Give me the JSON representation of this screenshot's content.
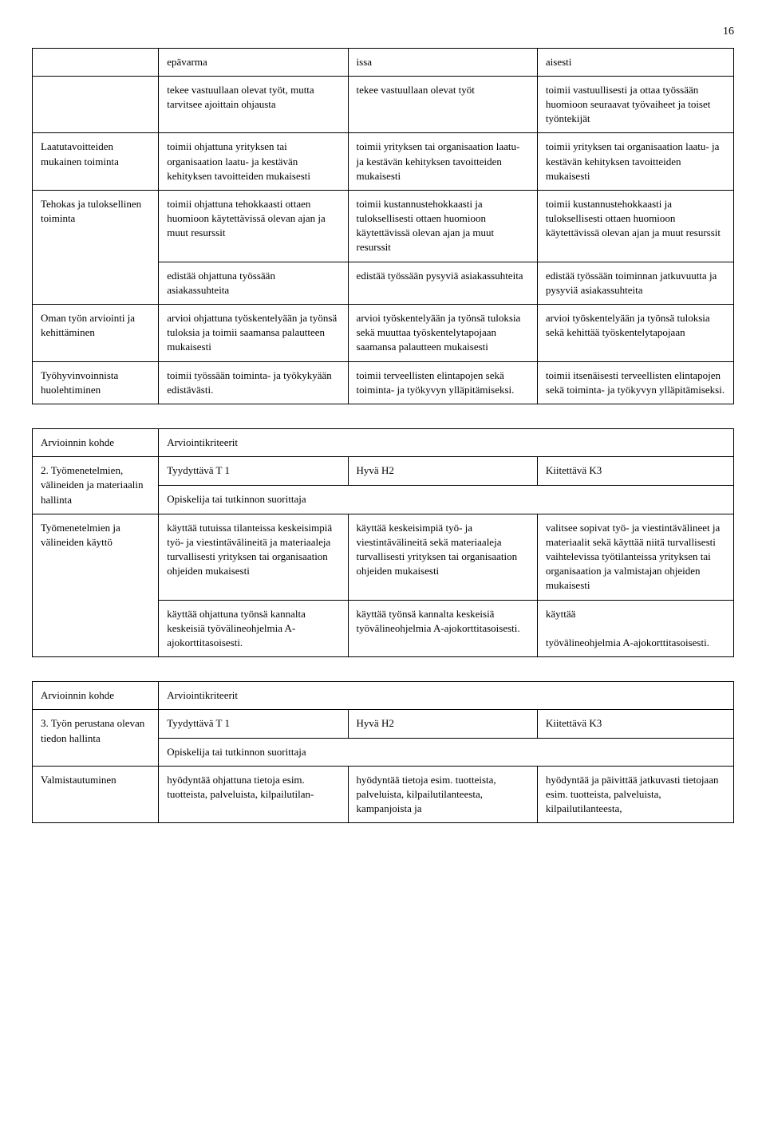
{
  "page_number": "16",
  "table1": {
    "rows": [
      {
        "label": "",
        "a": "epävarma",
        "b": "issa",
        "c": "aisesti"
      },
      {
        "label": "",
        "a": "tekee vastuullaan olevat työt, mutta tarvitsee ajoittain ohjausta",
        "b": "tekee vastuullaan olevat työt",
        "c": "toimii vastuullisesti ja ottaa työssään huomioon seuraavat työvaiheet ja toiset työntekijät"
      },
      {
        "label": "Laatutavoitteiden mukainen toiminta",
        "a": "toimii ohjattuna yrityksen tai organisaation laatu- ja kestävän kehityksen tavoitteiden mukaisesti",
        "b": "toimii yrityksen tai organisaation laatu- ja kestävän kehityksen tavoitteiden mukaisesti",
        "c": "toimii yrityksen tai organisaation laatu- ja kestävän kehityksen tavoitteiden mukaisesti"
      },
      {
        "label": "Tehokas ja tuloksellinen toiminta",
        "a": "toimii ohjattuna tehokkaasti ottaen huomioon käytettävissä olevan ajan ja muut resurssit",
        "b": "toimii kustannustehokkaasti ja tuloksellisesti ottaen huomioon käytettävissä olevan ajan ja muut resurssit",
        "c": "toimii kustannustehokkaasti ja tuloksellisesti ottaen huomioon käytettävissä olevan ajan ja muut resurssit"
      },
      {
        "label": "",
        "a": "edistää ohjattuna työssään asiakassuhteita",
        "b": "edistää työssään pysyviä asiakassuhteita",
        "c": "edistää työssään toiminnan jatkuvuutta ja pysyviä asiakassuhteita"
      },
      {
        "label": "Oman työn arviointi ja kehittäminen",
        "a": "arvioi ohjattuna työskentelyään ja työnsä tuloksia ja toimii saamansa palautteen mukaisesti",
        "b": "arvioi työskentelyään ja työnsä tuloksia sekä muuttaa työskentelytapojaan saamansa palautteen mukaisesti",
        "c": "arvioi työskentelyään ja työnsä tuloksia sekä kehittää työskentelytapojaan"
      },
      {
        "label": "Työhyvinvoinnista huolehtiminen",
        "a": "toimii työssään toiminta- ja työkykyään edistävästi.",
        "b": "toimii terveellisten elintapojen sekä toiminta- ja työkyvyn ylläpitämiseksi.",
        "c": "toimii itsenäisesti terveellisten elintapojen sekä toiminta- ja työkyvyn ylläpitämiseksi."
      }
    ]
  },
  "table2": {
    "header_label": "Arvioinnin kohde",
    "header_criteria": "Arviointikriteerit",
    "section_label": "2. Työmenetelmien, välineiden ja materiaalin hallinta",
    "levels": {
      "t1": "Tyydyttävä T 1",
      "h2": "Hyvä H2",
      "k3": "Kiitettävä K3"
    },
    "student_line": "Opiskelija tai tutkinnon suorittaja",
    "rows": [
      {
        "label": "Työmenetelmien ja välineiden käyttö",
        "a": "käyttää tutuissa tilanteissa keskeisimpiä työ- ja viestintävälineitä ja materiaaleja turvallisesti yrityksen tai organisaation ohjeiden mukaisesti",
        "b": "käyttää keskeisimpiä työ- ja viestintävälineitä sekä materiaaleja turvallisesti yrityksen tai organisaation ohjeiden mukaisesti",
        "c": "valitsee sopivat työ- ja viestintävälineet ja materiaalit sekä käyttää niitä turvallisesti vaihtelevissa työtilanteissa yrityksen tai organisaation ja valmistajan ohjeiden mukaisesti"
      },
      {
        "label": "",
        "a": "käyttää ohjattuna työnsä kannalta keskeisiä työvälineohjelmia A-ajokorttitasoisesti.",
        "b": "käyttää työnsä kannalta keskeisiä työvälineohjelmia A-ajokorttitasoisesti.",
        "c": "käyttää\n\ntyövälineohjelmia A-ajokorttitasoisesti."
      }
    ]
  },
  "table3": {
    "header_label": "Arvioinnin kohde",
    "header_criteria": "Arviointikriteerit",
    "section_label": "3. Työn perustana olevan tiedon hallinta",
    "levels": {
      "t1": "Tyydyttävä T 1",
      "h2": "Hyvä H2",
      "k3": "Kiitettävä K3"
    },
    "student_line": "Opiskelija tai tutkinnon suorittaja",
    "rows": [
      {
        "label": "Valmistautuminen",
        "a": "hyödyntää ohjattuna tietoja esim. tuotteista, palveluista, kilpailutilan-",
        "b": "hyödyntää tietoja esim. tuotteista, palveluista, kilpailutilanteesta, kampanjoista ja",
        "c": "hyödyntää ja päivittää jatkuvasti tietojaan esim. tuotteista, palveluista, kilpailutilanteesta,"
      }
    ]
  }
}
